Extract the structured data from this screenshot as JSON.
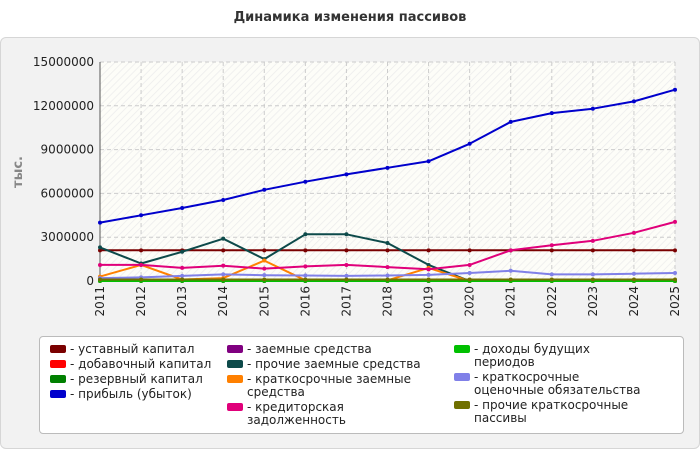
{
  "title": "Динамика изменения пассивов",
  "chart_data": {
    "type": "line",
    "title": "Динамика изменения пассивов",
    "ylabel": "тыс.",
    "xlabel": "",
    "x": [
      "2011",
      "2012",
      "2013",
      "2014",
      "2015",
      "2016",
      "2017",
      "2018",
      "2019",
      "2020",
      "2021",
      "2022",
      "2023",
      "2024",
      "2025"
    ],
    "ylim": [
      0,
      15000000
    ],
    "yticks": [
      0,
      3000000,
      6000000,
      9000000,
      12000000,
      15000000
    ],
    "grid": true,
    "legend_position": "bottom",
    "series": [
      {
        "name": "- уставный капитал",
        "color": "#7a0000",
        "values": [
          2100000,
          2100000,
          2100000,
          2100000,
          2100000,
          2100000,
          2100000,
          2100000,
          2100000,
          2100000,
          2100000,
          2100000,
          2100000,
          2100000,
          2100000
        ]
      },
      {
        "name": "- добавочный капитал",
        "color": "#ff0000",
        "values": [
          0,
          0,
          0,
          0,
          0,
          0,
          0,
          0,
          0,
          0,
          0,
          0,
          0,
          0,
          0
        ]
      },
      {
        "name": "- резервный капитал",
        "color": "#008000",
        "values": [
          50000,
          50000,
          50000,
          50000,
          50000,
          50000,
          50000,
          50000,
          50000,
          50000,
          50000,
          50000,
          50000,
          50000,
          50000
        ]
      },
      {
        "name": "- прибыль (убыток)",
        "color": "#0000cc",
        "values": [
          4000000,
          4500000,
          5000000,
          5550000,
          6250000,
          6800000,
          7300000,
          7750000,
          8200000,
          9400000,
          10900000,
          11500000,
          11800000,
          12300000,
          13100000
        ]
      },
      {
        "name": "- заемные средства",
        "color": "#800080",
        "values": [
          0,
          0,
          0,
          0,
          0,
          0,
          0,
          0,
          0,
          0,
          0,
          0,
          0,
          0,
          0
        ]
      },
      {
        "name": "- прочие заемные средства",
        "color": "#0d4a4a",
        "values": [
          2300000,
          1200000,
          2000000,
          2900000,
          1500000,
          3200000,
          3200000,
          2600000,
          1100000,
          0,
          0,
          0,
          0,
          0,
          0
        ]
      },
      {
        "name": "- краткосрочные заемные средства",
        "color": "#ff8000",
        "values": [
          300000,
          1100000,
          100000,
          200000,
          1400000,
          50000,
          50000,
          50000,
          900000,
          0,
          0,
          0,
          0,
          0,
          0
        ]
      },
      {
        "name": "- кредиторская задолженность",
        "color": "#e0007a",
        "values": [
          1100000,
          1100000,
          900000,
          1050000,
          850000,
          1000000,
          1100000,
          950000,
          800000,
          1100000,
          2100000,
          2450000,
          2750000,
          3300000,
          4050000
        ]
      },
      {
        "name": "- доходы будущих периодов",
        "color": "#00c000",
        "values": [
          0,
          0,
          0,
          0,
          0,
          0,
          0,
          0,
          0,
          0,
          0,
          0,
          0,
          0,
          0
        ]
      },
      {
        "name": "- краткосрочные оценочные обязательства",
        "color": "#8080e8",
        "values": [
          200000,
          250000,
          350000,
          450000,
          400000,
          380000,
          350000,
          380000,
          420000,
          550000,
          700000,
          450000,
          450000,
          500000,
          550000
        ]
      },
      {
        "name": "- прочие краткосрочные пассивы",
        "color": "#707000",
        "values": [
          100000,
          100000,
          100000,
          100000,
          100000,
          100000,
          100000,
          100000,
          100000,
          100000,
          100000,
          100000,
          100000,
          100000,
          100000
        ]
      }
    ]
  }
}
